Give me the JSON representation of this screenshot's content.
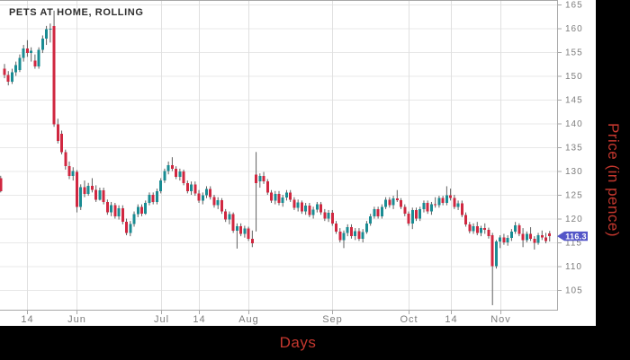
{
  "title": "PETS AT HOME, ROLLING",
  "y_axis": {
    "label": "Price (in pence)",
    "ticks": [
      165,
      160,
      155,
      150,
      145,
      140,
      135,
      130,
      125,
      120,
      115,
      110,
      105
    ]
  },
  "x_axis": {
    "label": "Days",
    "ticks": [
      {
        "label": "14",
        "day": 6
      },
      {
        "label": "Jun",
        "day": 19
      },
      {
        "label": "Jul",
        "day": 41
      },
      {
        "label": "14",
        "day": 51
      },
      {
        "label": "Aug",
        "day": 64
      },
      {
        "label": "Sep",
        "day": 86
      },
      {
        "label": "Oct",
        "day": 106
      },
      {
        "label": "14",
        "day": 117
      },
      {
        "label": "Nov",
        "day": 130
      }
    ]
  },
  "price_marker": {
    "text": "116.3",
    "value": 116.3
  },
  "colors": {
    "up_candle": "#1a8c93",
    "down_candle": "#d02740",
    "wick": "#606060",
    "grid": "#e8e8e8",
    "grid_vertical": "#e0e0e0",
    "axis_line": "#a8a8a8",
    "tick_text": "#7d7d7d",
    "title_text": "#2e2e2e",
    "axis_label_red": "#c4372e",
    "marker_badge": "#5456c8",
    "marker_text": "#ffffff",
    "strip_bg": "#000000"
  },
  "chart_data": {
    "type": "candlestick",
    "title": "PETS AT HOME, ROLLING",
    "ylabel": "Price (in pence)",
    "xlabel": "Days",
    "ylim": [
      100.5,
      166
    ],
    "grid": true,
    "last_price": 116.3,
    "x_start_day": -1,
    "candles": [
      [
        128.5,
        129.0,
        125.5,
        125.8
      ],
      [
        151.5,
        152.5,
        149.5,
        150.2
      ],
      [
        150.2,
        151.0,
        148.0,
        148.8
      ],
      [
        148.8,
        151.5,
        148.3,
        150.8
      ],
      [
        150.8,
        153.0,
        150.0,
        152.3
      ],
      [
        151.2,
        154.5,
        150.8,
        153.8
      ],
      [
        153.8,
        156.5,
        153.0,
        155.8
      ],
      [
        155.8,
        157.5,
        154.0,
        154.8
      ],
      [
        154.8,
        156.0,
        153.0,
        155.3
      ],
      [
        153.2,
        154.5,
        151.5,
        152.0
      ],
      [
        152.0,
        156.0,
        151.5,
        155.5
      ],
      [
        155.5,
        158.5,
        154.8,
        157.8
      ],
      [
        157.8,
        160.5,
        156.5,
        159.8
      ],
      [
        159.8,
        161.0,
        157.0,
        159.9
      ],
      [
        160.5,
        163.7,
        139.3,
        139.8
      ],
      [
        139.8,
        141.0,
        135.8,
        136.3
      ],
      [
        137.8,
        138.5,
        133.5,
        134.0
      ],
      [
        134.0,
        134.5,
        130.3,
        131.0
      ],
      [
        131.0,
        132.0,
        128.3,
        129.0
      ],
      [
        129.0,
        130.8,
        128.0,
        130.0
      ],
      [
        129.8,
        130.2,
        121.3,
        122.5
      ],
      [
        122.5,
        127.2,
        121.8,
        126.6
      ],
      [
        126.6,
        128.0,
        124.5,
        125.2
      ],
      [
        125.2,
        127.5,
        124.8,
        126.9
      ],
      [
        126.9,
        128.5,
        125.5,
        126.0
      ],
      [
        126.0,
        127.0,
        123.5,
        124.0
      ],
      [
        124.0,
        126.5,
        123.8,
        125.9
      ],
      [
        125.9,
        126.5,
        123.0,
        123.5
      ],
      [
        123.5,
        124.0,
        120.8,
        121.3
      ],
      [
        121.3,
        123.5,
        120.5,
        122.8
      ],
      [
        122.8,
        123.3,
        120.0,
        120.5
      ],
      [
        120.5,
        122.8,
        119.8,
        122.2
      ],
      [
        122.2,
        122.8,
        118.8,
        119.3
      ],
      [
        119.3,
        120.0,
        116.5,
        117.0
      ],
      [
        117.0,
        119.5,
        116.3,
        118.9
      ],
      [
        118.9,
        121.5,
        118.3,
        120.9
      ],
      [
        120.9,
        123.0,
        120.3,
        122.5
      ],
      [
        122.5,
        123.0,
        120.5,
        121.0
      ],
      [
        121.0,
        123.8,
        120.8,
        123.3
      ],
      [
        123.3,
        125.5,
        122.8,
        125.0
      ],
      [
        125.0,
        125.5,
        123.0,
        123.5
      ],
      [
        123.5,
        126.3,
        123.0,
        125.8
      ],
      [
        125.8,
        128.5,
        125.3,
        128.0
      ],
      [
        128.0,
        130.5,
        127.5,
        130.0
      ],
      [
        130.0,
        132.0,
        129.3,
        131.2
      ],
      [
        131.2,
        132.9,
        130.0,
        130.5
      ],
      [
        130.5,
        131.0,
        128.3,
        128.8
      ],
      [
        128.8,
        130.5,
        128.0,
        129.9
      ],
      [
        129.9,
        130.3,
        127.0,
        127.5
      ],
      [
        127.5,
        128.0,
        125.3,
        125.8
      ],
      [
        125.8,
        127.8,
        125.0,
        127.2
      ],
      [
        127.2,
        127.8,
        124.8,
        125.3
      ],
      [
        125.3,
        126.0,
        123.3,
        123.8
      ],
      [
        123.8,
        125.5,
        123.0,
        124.9
      ],
      [
        124.9,
        126.8,
        124.3,
        126.2
      ],
      [
        126.2,
        126.8,
        124.0,
        124.5
      ],
      [
        124.5,
        125.0,
        122.3,
        122.8
      ],
      [
        122.8,
        124.5,
        122.0,
        123.9
      ],
      [
        123.9,
        124.3,
        121.0,
        121.5
      ],
      [
        121.5,
        122.0,
        119.3,
        119.8
      ],
      [
        119.8,
        121.5,
        118.8,
        120.9
      ],
      [
        120.9,
        121.3,
        117.0,
        117.5
      ],
      [
        117.5,
        119.0,
        113.7,
        118.4
      ],
      [
        118.4,
        119.0,
        116.3,
        116.8
      ],
      [
        116.8,
        118.5,
        116.0,
        117.9
      ],
      [
        117.9,
        118.3,
        115.3,
        115.8
      ],
      [
        115.8,
        117.5,
        114.0,
        114.8
      ],
      [
        129.2,
        134.0,
        117.3,
        127.5
      ],
      [
        127.8,
        129.5,
        126.5,
        129.0
      ],
      [
        129.0,
        129.8,
        127.3,
        127.8
      ],
      [
        127.8,
        128.3,
        125.0,
        125.5
      ],
      [
        125.5,
        126.0,
        123.3,
        123.8
      ],
      [
        123.8,
        125.8,
        123.0,
        125.2
      ],
      [
        125.2,
        125.8,
        122.8,
        123.3
      ],
      [
        123.3,
        125.0,
        122.5,
        124.4
      ],
      [
        124.4,
        126.0,
        123.8,
        125.5
      ],
      [
        125.5,
        126.0,
        123.5,
        124.0
      ],
      [
        124.0,
        124.5,
        121.8,
        122.3
      ],
      [
        122.3,
        124.0,
        121.5,
        123.4
      ],
      [
        123.4,
        123.8,
        121.0,
        121.5
      ],
      [
        121.5,
        123.3,
        120.8,
        122.7
      ],
      [
        122.7,
        123.3,
        120.3,
        120.8
      ],
      [
        120.8,
        122.5,
        120.0,
        121.9
      ],
      [
        121.9,
        123.5,
        121.3,
        123.0
      ],
      [
        123.0,
        123.5,
        120.8,
        121.3
      ],
      [
        121.3,
        122.0,
        119.5,
        120.0
      ],
      [
        120.0,
        121.8,
        119.3,
        121.2
      ],
      [
        121.2,
        121.8,
        118.5,
        119.0
      ],
      [
        119.0,
        119.5,
        116.8,
        117.3
      ],
      [
        117.3,
        118.0,
        115.0,
        115.5
      ],
      [
        115.5,
        117.5,
        113.8,
        117.0
      ],
      [
        117.0,
        118.8,
        116.3,
        118.2
      ],
      [
        118.2,
        118.8,
        115.8,
        116.3
      ],
      [
        116.3,
        118.0,
        115.5,
        117.4
      ],
      [
        117.4,
        118.0,
        115.3,
        115.8
      ],
      [
        115.8,
        117.8,
        115.0,
        117.2
      ],
      [
        117.2,
        119.5,
        116.8,
        119.0
      ],
      [
        119.0,
        121.0,
        118.5,
        120.5
      ],
      [
        120.5,
        122.5,
        120.0,
        122.0
      ],
      [
        122.0,
        122.5,
        120.0,
        120.5
      ],
      [
        120.5,
        123.0,
        120.0,
        122.5
      ],
      [
        122.5,
        124.5,
        122.0,
        124.0
      ],
      [
        124.0,
        124.5,
        122.3,
        122.8
      ],
      [
        122.8,
        124.8,
        122.0,
        124.2
      ],
      [
        124.2,
        126.0,
        123.5,
        123.9
      ],
      [
        123.9,
        124.3,
        122.0,
        122.5
      ],
      [
        122.5,
        123.0,
        120.5,
        121.0
      ],
      [
        121.0,
        121.5,
        118.5,
        119.0
      ],
      [
        119.0,
        122.3,
        117.8,
        121.8
      ],
      [
        121.8,
        122.3,
        119.5,
        120.0
      ],
      [
        120.0,
        122.5,
        119.5,
        122.0
      ],
      [
        122.0,
        123.8,
        121.3,
        123.3
      ],
      [
        123.3,
        123.8,
        121.0,
        121.5
      ],
      [
        121.5,
        123.5,
        120.8,
        123.0
      ],
      [
        123.0,
        124.5,
        122.3,
        122.8
      ],
      [
        122.8,
        124.8,
        122.3,
        124.3
      ],
      [
        124.3,
        124.8,
        122.8,
        123.3
      ],
      [
        123.3,
        126.8,
        122.8,
        124.9
      ],
      [
        124.9,
        126.3,
        123.8,
        124.3
      ],
      [
        124.3,
        125.0,
        122.0,
        122.5
      ],
      [
        122.5,
        123.8,
        121.8,
        123.2
      ],
      [
        123.2,
        123.8,
        120.3,
        120.8
      ],
      [
        120.8,
        121.3,
        118.3,
        118.8
      ],
      [
        118.8,
        119.3,
        116.9,
        117.4
      ],
      [
        117.4,
        119.0,
        116.8,
        118.4
      ],
      [
        118.4,
        119.3,
        116.5,
        117.0
      ],
      [
        117.0,
        118.5,
        116.3,
        118.0
      ],
      [
        118.0,
        119.0,
        116.8,
        117.6
      ],
      [
        117.6,
        118.1,
        115.8,
        116.3
      ],
      [
        116.5,
        117.0,
        101.8,
        110.0
      ],
      [
        110.0,
        115.5,
        109.5,
        115.2
      ],
      [
        115.2,
        116.5,
        113.8,
        116.0
      ],
      [
        116.0,
        116.8,
        114.5,
        115.0
      ],
      [
        115.0,
        116.5,
        114.3,
        115.9
      ],
      [
        115.9,
        117.8,
        115.3,
        117.3
      ],
      [
        117.3,
        119.3,
        116.8,
        118.6
      ],
      [
        118.6,
        119.0,
        116.3,
        116.8
      ],
      [
        116.8,
        118.0,
        114.0,
        115.5
      ],
      [
        115.5,
        117.3,
        115.0,
        116.8
      ],
      [
        116.8,
        118.2,
        115.3,
        115.8
      ],
      [
        115.8,
        116.3,
        113.5,
        114.9
      ],
      [
        114.9,
        117.0,
        114.5,
        116.5
      ],
      [
        116.5,
        117.5,
        115.5,
        116.0
      ],
      [
        116.0,
        117.0,
        114.8,
        115.3
      ],
      [
        116.9,
        117.4,
        115.2,
        116.3
      ]
    ]
  }
}
